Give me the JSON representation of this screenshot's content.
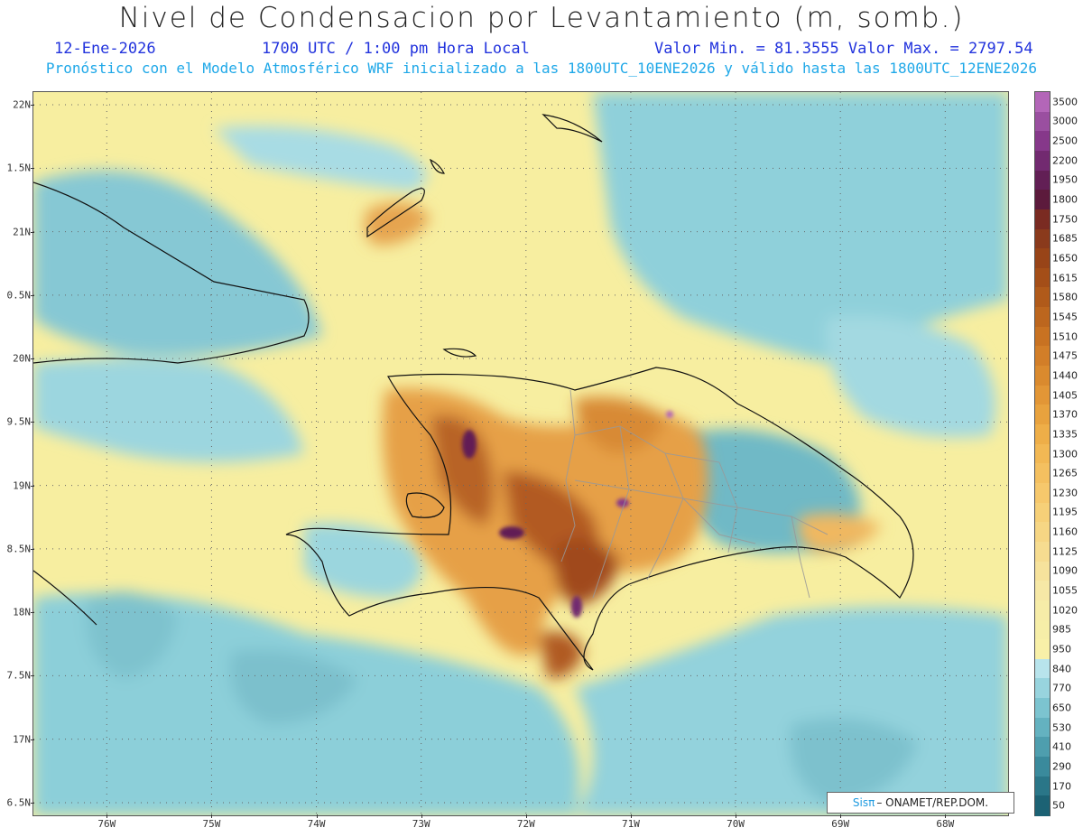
{
  "title": "Nivel de Condensacion por Levantamiento (m, somb.)",
  "date": "12-Ene-2026",
  "time_label": "1700 UTC / 1:00 pm Hora Local",
  "min_max": "Valor Min. = 81.3555  Valor Max. = 2797.54",
  "subtitle": "Pronóstico con el Modelo Atmosférico WRF inicializado a las 1800UTC_10ENE2026 y válido hasta las  1800UTC_12ENE2026",
  "credit": {
    "brand": "Sisπ",
    "text": "– ONAMET/REP.DOM."
  },
  "map": {
    "lon_range": [
      -76.7,
      -67.4
    ],
    "lat_range": [
      16.4,
      22.1
    ],
    "lat_ticks": [
      "22N",
      "1.5N",
      "21N",
      "0.5N",
      "20N",
      "9.5N",
      "19N",
      "8.5N",
      "18N",
      "7.5N",
      "17N",
      "6.5N"
    ],
    "lat_values": [
      22.0,
      21.5,
      21.0,
      20.5,
      20.0,
      19.5,
      19.0,
      18.5,
      18.0,
      17.5,
      17.0,
      16.5
    ],
    "lon_ticks": [
      "76W",
      "75W",
      "74W",
      "73W",
      "72W",
      "71W",
      "70W",
      "69W",
      "68W"
    ],
    "lon_values": [
      -76,
      -75,
      -74,
      -73,
      -72,
      -71,
      -70,
      -69,
      -68
    ],
    "grid": "dotted"
  },
  "colorbar": {
    "labels": [
      "3500",
      "3000",
      "2500",
      "2200",
      "1950",
      "1800",
      "1750",
      "1685",
      "1650",
      "1615",
      "1580",
      "1545",
      "1510",
      "1475",
      "1440",
      "1405",
      "1370",
      "1335",
      "1300",
      "1265",
      "1230",
      "1195",
      "1160",
      "1125",
      "1090",
      "1055",
      "1020",
      "985",
      "950",
      "840",
      "770",
      "650",
      "530",
      "410",
      "290",
      "170",
      "50"
    ],
    "colors": [
      "#b366b8",
      "#9a4fa0",
      "#86388a",
      "#722a70",
      "#621f55",
      "#5c1a3c",
      "#7a2b22",
      "#8a3a1c",
      "#984418",
      "#a44e18",
      "#b05a1a",
      "#bc661e",
      "#c87222",
      "#d27e28",
      "#da8a2e",
      "#e29636",
      "#e8a23e",
      "#eeae48",
      "#f2b854",
      "#f4c060",
      "#f6c86c",
      "#f6d078",
      "#f6d684",
      "#f6dc90",
      "#f6e29c",
      "#f6e8a6",
      "#f6eca8",
      "#f6eea8",
      "#f8f0a8",
      "#b8e4ec",
      "#98d4de",
      "#7cc4d0",
      "#64b2c0",
      "#4e9eae",
      "#3a8a9c",
      "#2a7688",
      "#1c6274"
    ]
  }
}
